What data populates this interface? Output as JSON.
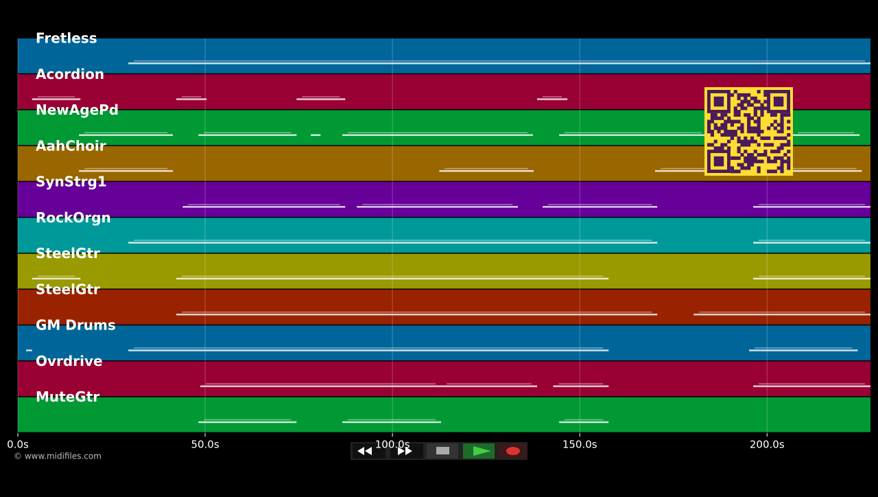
{
  "timeline": {
    "xlim": [
      0,
      227.6
    ],
    "xticks": [
      {
        "value": 0,
        "label": "0.0s"
      },
      {
        "value": 50,
        "label": "50.0s"
      },
      {
        "value": 100,
        "label": "100.0s"
      },
      {
        "value": 150,
        "label": "150.0s"
      },
      {
        "value": 200,
        "label": "200.0s"
      }
    ],
    "tracks": [
      {
        "name": "Fretless",
        "color": "#006699",
        "segments": [
          [
            29.5,
            227.6
          ]
        ]
      },
      {
        "name": "Acordion",
        "color": "#990033",
        "segments": [
          [
            3.8,
            16.7
          ],
          [
            42.3,
            50.4
          ],
          [
            74.4,
            87.4
          ],
          [
            138.6,
            146.7
          ]
        ]
      },
      {
        "name": "NewAgePd",
        "color": "#009933",
        "segments": [
          [
            16.3,
            41.4
          ],
          [
            48.2,
            74.4
          ],
          [
            78.2,
            80.8
          ],
          [
            86.6,
            137.5
          ],
          [
            144.5,
            183.9
          ],
          [
            206.8,
            224.7
          ]
        ]
      },
      {
        "name": "AahChoir",
        "color": "#996600",
        "segments": [
          [
            16.3,
            41.4
          ],
          [
            112.5,
            137.7
          ],
          [
            170.1,
            225.3
          ]
        ]
      },
      {
        "name": "SynStrg1",
        "color": "#660099",
        "segments": [
          [
            44,
            87.4
          ],
          [
            90.5,
            133.5
          ],
          [
            140.1,
            170.7
          ],
          [
            196.3,
            227.6
          ]
        ]
      },
      {
        "name": "RockOrgn",
        "color": "#009999",
        "segments": [
          [
            29.5,
            170.7
          ],
          [
            196.3,
            227.6
          ]
        ]
      },
      {
        "name": "SteelGtr",
        "color": "#999900",
        "segments": [
          [
            3.8,
            16.7
          ],
          [
            42.3,
            157.7
          ],
          [
            196.3,
            227.6
          ]
        ]
      },
      {
        "name": "SteelGtr",
        "color": "#992200",
        "segments": [
          [
            42.3,
            170.7
          ],
          [
            180.4,
            227.6
          ]
        ]
      },
      {
        "name": "GM Drums",
        "color": "#006699",
        "segments": [
          [
            2.2,
            3.8
          ],
          [
            29.5,
            157.7
          ],
          [
            195.2,
            224.2
          ]
        ]
      },
      {
        "name": "Ovrdrive",
        "color": "#990033",
        "segments": [
          [
            48.7,
            113
          ],
          [
            113,
            138.6
          ],
          [
            142.9,
            157.7
          ],
          [
            196.3,
            227.6
          ]
        ]
      },
      {
        "name": "MuteGtr",
        "color": "#009933",
        "segments": [
          [
            48.2,
            74.4
          ],
          [
            86.6,
            113
          ],
          [
            144.5,
            157.7
          ]
        ]
      }
    ]
  },
  "copyright": "© www.midifiles.com"
}
